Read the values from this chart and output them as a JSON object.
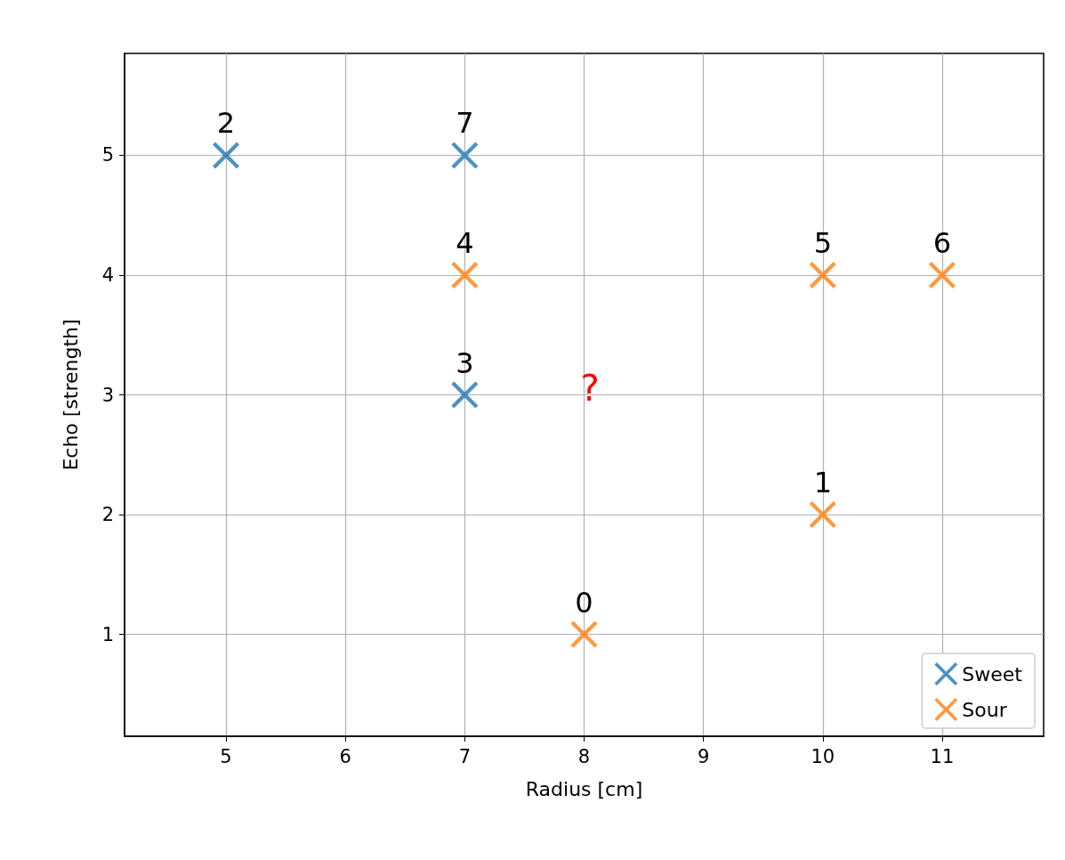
{
  "chart_data": {
    "type": "scatter",
    "xlabel": "Radius [cm]",
    "ylabel": "Echo [strength]",
    "xlim": [
      4.15,
      11.85
    ],
    "ylim": [
      0.15,
      5.85
    ],
    "xticks": [
      5,
      6,
      7,
      8,
      9,
      10,
      11
    ],
    "yticks": [
      1,
      2,
      3,
      4,
      5
    ],
    "grid": true,
    "legend": "bottom right",
    "marker": "cross",
    "series": [
      {
        "name": "Sweet",
        "color": "#1f77b4",
        "x": [
          5,
          7,
          7
        ],
        "values": [
          5,
          5,
          3
        ]
      },
      {
        "name": "Sour",
        "color": "#ff7f0e",
        "x": [
          8,
          10,
          7,
          10,
          11
        ],
        "values": [
          1,
          2,
          4,
          4,
          4
        ]
      }
    ],
    "annotations": [
      {
        "text": "2",
        "x": 5,
        "y": 5
      },
      {
        "text": "7",
        "x": 7,
        "y": 5
      },
      {
        "text": "3",
        "x": 7,
        "y": 3
      },
      {
        "text": "0",
        "x": 8,
        "y": 1
      },
      {
        "text": "1",
        "x": 10,
        "y": 2
      },
      {
        "text": "4",
        "x": 7,
        "y": 4
      },
      {
        "text": "5",
        "x": 10,
        "y": 4
      },
      {
        "text": "6",
        "x": 11,
        "y": 4
      },
      "?"
    ]
  }
}
